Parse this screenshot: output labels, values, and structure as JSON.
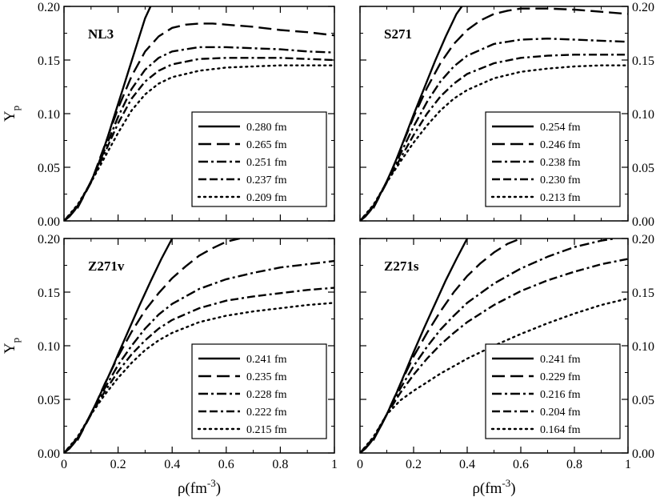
{
  "chart_data": [
    {
      "type": "line",
      "title": "NL3",
      "xlabel": "ρ(fm",
      "xlabel_sup": "-3",
      "xlabel_end": ")",
      "ylabel": "Y",
      "ylabel_sub": "p",
      "xlim": [
        0,
        1
      ],
      "ylim": [
        0,
        0.2
      ],
      "xticks": [
        "0",
        "0.2",
        "0.4",
        "0.6",
        "0.8",
        "1"
      ],
      "yticks": [
        "0.00",
        "0.05",
        "0.10",
        "0.15",
        "0.20"
      ],
      "legend_position": "lower-right",
      "series": [
        {
          "name": "0.280 fm",
          "style": "solid",
          "x": [
            0.0,
            0.02,
            0.04,
            0.06,
            0.08,
            0.1,
            0.12,
            0.14,
            0.16,
            0.18,
            0.2,
            0.22,
            0.24,
            0.26,
            0.28,
            0.3,
            0.32
          ],
          "y": [
            0.0,
            0.004,
            0.01,
            0.018,
            0.027,
            0.037,
            0.048,
            0.062,
            0.077,
            0.093,
            0.109,
            0.125,
            0.141,
            0.157,
            0.173,
            0.189,
            0.2
          ]
        },
        {
          "name": "0.265 fm",
          "style": "long-dash",
          "x": [
            0.0,
            0.05,
            0.1,
            0.15,
            0.2,
            0.25,
            0.3,
            0.35,
            0.4,
            0.45,
            0.5,
            0.55,
            0.6,
            0.7,
            0.8,
            0.9,
            1.0
          ],
          "y": [
            0.0,
            0.012,
            0.036,
            0.07,
            0.105,
            0.135,
            0.158,
            0.172,
            0.18,
            0.183,
            0.184,
            0.184,
            0.183,
            0.181,
            0.178,
            0.176,
            0.173
          ]
        },
        {
          "name": "0.251 fm",
          "style": "dash-dot",
          "x": [
            0.0,
            0.05,
            0.1,
            0.15,
            0.2,
            0.25,
            0.3,
            0.35,
            0.4,
            0.5,
            0.6,
            0.7,
            0.8,
            0.9,
            1.0
          ],
          "y": [
            0.0,
            0.013,
            0.036,
            0.066,
            0.097,
            0.123,
            0.141,
            0.152,
            0.158,
            0.162,
            0.162,
            0.161,
            0.16,
            0.158,
            0.157
          ]
        },
        {
          "name": "0.237 fm",
          "style": "dash-dash-dot",
          "x": [
            0.0,
            0.05,
            0.1,
            0.15,
            0.2,
            0.25,
            0.3,
            0.35,
            0.4,
            0.5,
            0.6,
            0.7,
            0.8,
            0.9,
            1.0
          ],
          "y": [
            0.0,
            0.014,
            0.036,
            0.063,
            0.091,
            0.114,
            0.13,
            0.14,
            0.146,
            0.151,
            0.152,
            0.152,
            0.152,
            0.151,
            0.15
          ]
        },
        {
          "name": "0.209 fm",
          "style": "dotted",
          "x": [
            0.0,
            0.05,
            0.1,
            0.15,
            0.2,
            0.25,
            0.3,
            0.35,
            0.4,
            0.5,
            0.6,
            0.7,
            0.8,
            0.9,
            1.0
          ],
          "y": [
            0.0,
            0.015,
            0.036,
            0.059,
            0.082,
            0.103,
            0.118,
            0.128,
            0.134,
            0.14,
            0.143,
            0.144,
            0.145,
            0.145,
            0.145
          ]
        }
      ]
    },
    {
      "type": "line",
      "title": "S271",
      "xlabel": "ρ(fm",
      "xlabel_sup": "-3",
      "xlabel_end": ")",
      "ylabel": "",
      "ylabel_sub": "",
      "xlim": [
        0,
        1
      ],
      "ylim": [
        0,
        0.2
      ],
      "xticks": [
        "0",
        "0.2",
        "0.4",
        "0.6",
        "0.8",
        "1"
      ],
      "yticks": [
        "0.00",
        "0.05",
        "0.10",
        "0.15",
        "0.20"
      ],
      "legend_position": "lower-right",
      "series": [
        {
          "name": "0.254 fm",
          "style": "solid",
          "x": [
            0.0,
            0.02,
            0.04,
            0.06,
            0.08,
            0.1,
            0.12,
            0.14,
            0.16,
            0.18,
            0.2,
            0.24,
            0.28,
            0.32,
            0.36,
            0.38
          ],
          "y": [
            0.0,
            0.004,
            0.01,
            0.018,
            0.027,
            0.037,
            0.048,
            0.06,
            0.073,
            0.086,
            0.099,
            0.124,
            0.149,
            0.172,
            0.193,
            0.2
          ]
        },
        {
          "name": "0.246 fm",
          "style": "long-dash",
          "x": [
            0.0,
            0.05,
            0.1,
            0.15,
            0.2,
            0.25,
            0.3,
            0.35,
            0.4,
            0.45,
            0.5,
            0.55,
            0.6,
            0.7,
            0.8,
            0.9,
            1.0
          ],
          "y": [
            0.0,
            0.012,
            0.036,
            0.066,
            0.097,
            0.124,
            0.147,
            0.165,
            0.178,
            0.187,
            0.193,
            0.196,
            0.198,
            0.198,
            0.197,
            0.195,
            0.193
          ]
        },
        {
          "name": "0.238 fm",
          "style": "dash-dot",
          "x": [
            0.0,
            0.05,
            0.1,
            0.15,
            0.2,
            0.25,
            0.3,
            0.35,
            0.4,
            0.5,
            0.6,
            0.7,
            0.8,
            0.9,
            1.0
          ],
          "y": [
            0.0,
            0.013,
            0.036,
            0.062,
            0.088,
            0.111,
            0.13,
            0.144,
            0.154,
            0.165,
            0.169,
            0.17,
            0.169,
            0.168,
            0.167
          ]
        },
        {
          "name": "0.230 fm",
          "style": "dash-dash-dot",
          "x": [
            0.0,
            0.05,
            0.1,
            0.15,
            0.2,
            0.25,
            0.3,
            0.35,
            0.4,
            0.5,
            0.6,
            0.7,
            0.8,
            0.9,
            1.0
          ],
          "y": [
            0.0,
            0.014,
            0.036,
            0.058,
            0.08,
            0.1,
            0.116,
            0.128,
            0.137,
            0.147,
            0.152,
            0.154,
            0.155,
            0.155,
            0.155
          ]
        },
        {
          "name": "0.213 fm",
          "style": "dotted",
          "x": [
            0.0,
            0.05,
            0.1,
            0.15,
            0.2,
            0.25,
            0.3,
            0.35,
            0.4,
            0.5,
            0.6,
            0.7,
            0.8,
            0.9,
            1.0
          ],
          "y": [
            0.0,
            0.015,
            0.036,
            0.055,
            0.073,
            0.089,
            0.103,
            0.114,
            0.122,
            0.133,
            0.139,
            0.142,
            0.144,
            0.145,
            0.145
          ]
        }
      ]
    },
    {
      "type": "line",
      "title": "Z271v",
      "xlabel": "ρ(fm",
      "xlabel_sup": "-3",
      "xlabel_end": ")",
      "ylabel": "Y",
      "ylabel_sub": "p",
      "xlim": [
        0,
        1
      ],
      "ylim": [
        0,
        0.2
      ],
      "xticks": [
        "0",
        "0.2",
        "0.4",
        "0.6",
        "0.8",
        "1"
      ],
      "yticks": [
        "0.00",
        "0.05",
        "0.10",
        "0.15",
        "0.20"
      ],
      "legend_position": "lower-right",
      "series": [
        {
          "name": "0.241 fm",
          "style": "solid",
          "x": [
            0.0,
            0.02,
            0.04,
            0.06,
            0.08,
            0.1,
            0.12,
            0.14,
            0.16,
            0.18,
            0.2,
            0.24,
            0.28,
            0.32,
            0.36,
            0.4
          ],
          "y": [
            0.0,
            0.004,
            0.01,
            0.018,
            0.027,
            0.037,
            0.047,
            0.058,
            0.069,
            0.08,
            0.092,
            0.115,
            0.138,
            0.16,
            0.181,
            0.2
          ]
        },
        {
          "name": "0.235 fm",
          "style": "long-dash",
          "x": [
            0.0,
            0.05,
            0.1,
            0.15,
            0.2,
            0.25,
            0.3,
            0.35,
            0.4,
            0.45,
            0.5,
            0.55,
            0.6,
            0.65
          ],
          "y": [
            0.0,
            0.012,
            0.036,
            0.064,
            0.09,
            0.113,
            0.133,
            0.149,
            0.163,
            0.174,
            0.184,
            0.191,
            0.197,
            0.2
          ]
        },
        {
          "name": "0.228 fm",
          "style": "dash-dot",
          "x": [
            0.0,
            0.05,
            0.1,
            0.15,
            0.2,
            0.25,
            0.3,
            0.35,
            0.4,
            0.5,
            0.6,
            0.7,
            0.8,
            0.9,
            1.0
          ],
          "y": [
            0.0,
            0.013,
            0.036,
            0.06,
            0.082,
            0.1,
            0.116,
            0.129,
            0.139,
            0.153,
            0.162,
            0.168,
            0.173,
            0.176,
            0.179
          ]
        },
        {
          "name": "0.222 fm",
          "style": "dash-dash-dot",
          "x": [
            0.0,
            0.05,
            0.1,
            0.15,
            0.2,
            0.25,
            0.3,
            0.35,
            0.4,
            0.5,
            0.6,
            0.7,
            0.8,
            0.9,
            1.0
          ],
          "y": [
            0.0,
            0.014,
            0.036,
            0.057,
            0.076,
            0.092,
            0.105,
            0.116,
            0.124,
            0.135,
            0.142,
            0.146,
            0.149,
            0.152,
            0.154
          ]
        },
        {
          "name": "0.215 fm",
          "style": "dotted",
          "x": [
            0.0,
            0.05,
            0.1,
            0.15,
            0.2,
            0.25,
            0.3,
            0.35,
            0.4,
            0.5,
            0.6,
            0.7,
            0.8,
            0.9,
            1.0
          ],
          "y": [
            0.0,
            0.015,
            0.036,
            0.054,
            0.07,
            0.084,
            0.096,
            0.105,
            0.112,
            0.122,
            0.128,
            0.132,
            0.135,
            0.138,
            0.14
          ]
        }
      ]
    },
    {
      "type": "line",
      "title": "Z271s",
      "xlabel": "ρ(fm",
      "xlabel_sup": "-3",
      "xlabel_end": ")",
      "ylabel": "",
      "ylabel_sub": "",
      "xlim": [
        0,
        1
      ],
      "ylim": [
        0,
        0.2
      ],
      "xticks": [
        "0",
        "0.2",
        "0.4",
        "0.6",
        "0.8",
        "1"
      ],
      "yticks": [
        "0.00",
        "0.05",
        "0.10",
        "0.15",
        "0.20"
      ],
      "legend_position": "lower-right",
      "series": [
        {
          "name": "0.241 fm",
          "style": "solid",
          "x": [
            0.0,
            0.02,
            0.04,
            0.06,
            0.08,
            0.1,
            0.12,
            0.14,
            0.16,
            0.18,
            0.2,
            0.24,
            0.28,
            0.32,
            0.36,
            0.4
          ],
          "y": [
            0.0,
            0.004,
            0.01,
            0.017,
            0.026,
            0.036,
            0.047,
            0.058,
            0.07,
            0.082,
            0.094,
            0.117,
            0.139,
            0.161,
            0.181,
            0.2
          ]
        },
        {
          "name": "0.229 fm",
          "style": "long-dash",
          "x": [
            0.0,
            0.05,
            0.1,
            0.15,
            0.2,
            0.25,
            0.3,
            0.35,
            0.4,
            0.45,
            0.5,
            0.55,
            0.6
          ],
          "y": [
            0.0,
            0.012,
            0.036,
            0.064,
            0.09,
            0.112,
            0.132,
            0.15,
            0.165,
            0.177,
            0.187,
            0.195,
            0.2
          ]
        },
        {
          "name": "0.216 fm",
          "style": "dash-dot",
          "x": [
            0.0,
            0.05,
            0.1,
            0.15,
            0.2,
            0.25,
            0.3,
            0.35,
            0.4,
            0.5,
            0.6,
            0.7,
            0.8,
            0.9,
            0.95
          ],
          "y": [
            0.0,
            0.013,
            0.036,
            0.06,
            0.081,
            0.099,
            0.115,
            0.128,
            0.14,
            0.158,
            0.172,
            0.183,
            0.192,
            0.198,
            0.2
          ]
        },
        {
          "name": "0.204 fm",
          "style": "dash-dash-dot",
          "x": [
            0.0,
            0.05,
            0.1,
            0.15,
            0.2,
            0.25,
            0.3,
            0.35,
            0.4,
            0.5,
            0.6,
            0.7,
            0.8,
            0.9,
            1.0
          ],
          "y": [
            0.0,
            0.014,
            0.036,
            0.056,
            0.073,
            0.088,
            0.101,
            0.112,
            0.122,
            0.138,
            0.151,
            0.161,
            0.169,
            0.176,
            0.181
          ]
        },
        {
          "name": "0.164 fm",
          "style": "dotted",
          "x": [
            0.0,
            0.05,
            0.1,
            0.15,
            0.2,
            0.25,
            0.3,
            0.35,
            0.4,
            0.5,
            0.6,
            0.7,
            0.8,
            0.9,
            1.0
          ],
          "y": [
            0.0,
            0.015,
            0.036,
            0.049,
            0.058,
            0.066,
            0.074,
            0.081,
            0.088,
            0.1,
            0.111,
            0.121,
            0.13,
            0.138,
            0.144
          ]
        }
      ]
    }
  ]
}
